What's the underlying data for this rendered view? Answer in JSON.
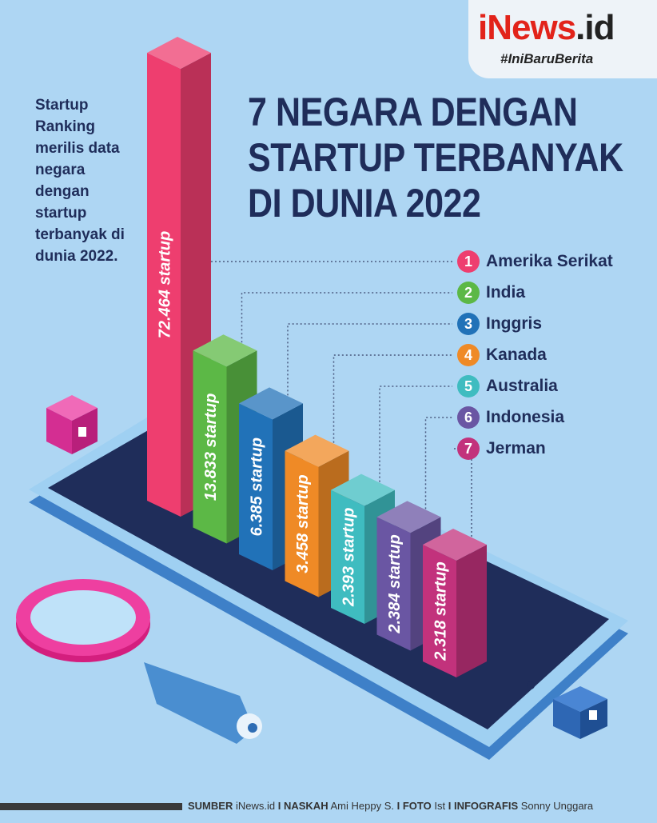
{
  "brand": {
    "logo_main": "iNews",
    "logo_suffix": ".id",
    "tagline": "#IniBaruBerita"
  },
  "intro_text": "Startup Ranking merilis data negara dengan startup terbanyak di dunia 2022.",
  "title_lines": [
    "7 NEGARA DENGAN",
    "STARTUP TERBANYAK",
    "DI DUNIA 2022"
  ],
  "chart_data": {
    "type": "bar",
    "title": "7 NEGARA DENGAN STARTUP TERBANYAK DI DUNIA 2022",
    "categories": [
      "Amerika Serikat",
      "India",
      "Inggris",
      "Kanada",
      "Australia",
      "Indonesia",
      "Jerman"
    ],
    "ranks": [
      "1",
      "2",
      "3",
      "4",
      "5",
      "6",
      "7"
    ],
    "values": [
      72464,
      13833,
      6385,
      3458,
      2393,
      2384,
      2318
    ],
    "value_labels": [
      "72.464 startup",
      "13.833 startup",
      "6.385 startup",
      "3.458 startup",
      "2.393 startup",
      "2.384 startup",
      "2.318 startup"
    ],
    "colors": [
      "#ee3e6f",
      "#5cb846",
      "#2172b8",
      "#ef8a26",
      "#3fbcc0",
      "#6a56a3",
      "#c2327c"
    ],
    "legend": "right",
    "grid": false
  },
  "footer": {
    "source_label": "SUMBER",
    "source_value": "iNews.id",
    "sep1": "I",
    "writer_label": "NASKAH",
    "writer_value": "Ami Heppy S.",
    "sep2": "I",
    "photo_label": "FOTO",
    "photo_value": "Ist",
    "sep3": "I",
    "graphic_label": "INFOGRAFIS",
    "graphic_value": "Sonny Unggara"
  }
}
